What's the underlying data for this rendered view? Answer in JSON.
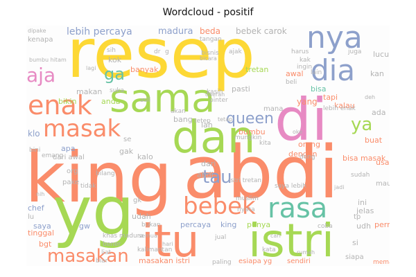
{
  "title": "Wordcloud - positif",
  "palette": {
    "orange": "#fa8c6a",
    "green": "#a6d854",
    "yellow": "#fdd835",
    "blue": "#8da0cb",
    "pink": "#e78ac3",
    "teal": "#66c2a5",
    "tan": "#e5c494",
    "grey": "#b3b3b3"
  },
  "words": [
    {
      "text": "resep"
    },
    {
      "text": "king"
    },
    {
      "text": "abdi"
    },
    {
      "text": "yg"
    },
    {
      "text": "itu"
    },
    {
      "text": "istri"
    },
    {
      "text": "di"
    },
    {
      "text": "dan"
    },
    {
      "text": "sama"
    },
    {
      "text": "nya"
    },
    {
      "text": "dia"
    },
    {
      "text": "enak"
    },
    {
      "text": "masak"
    },
    {
      "text": "rasa"
    },
    {
      "text": "bebek"
    },
    {
      "text": "masakan"
    },
    {
      "text": "aja"
    },
    {
      "text": "tau"
    },
    {
      "text": "queen"
    },
    {
      "text": "ya"
    },
    {
      "text": "ga"
    },
    {
      "text": "lebih percaya"
    },
    {
      "text": "madura"
    },
    {
      "text": "beda"
    },
    {
      "text": "bebek carok"
    },
    {
      "text": "banyak"
    },
    {
      "text": "tretan"
    },
    {
      "text": "pasti"
    },
    {
      "text": "awal"
    },
    {
      "text": "bisa"
    },
    {
      "text": "kalau"
    },
    {
      "text": "tapi"
    },
    {
      "text": "yang"
    },
    {
      "text": "bumbu"
    },
    {
      "text": "orang"
    },
    {
      "text": "dengan"
    },
    {
      "text": "buat"
    },
    {
      "text": "klo"
    },
    {
      "text": "apa"
    },
    {
      "text": "bikin"
    },
    {
      "text": "anda"
    },
    {
      "text": "gak"
    },
    {
      "text": "kalo"
    },
    {
      "text": "lah"
    },
    {
      "text": "bang"
    },
    {
      "text": "dari"
    },
    {
      "text": "abdi"
    },
    {
      "text": "chef"
    },
    {
      "text": "saya"
    },
    {
      "text": "gw"
    },
    {
      "text": "udah"
    },
    {
      "text": "percaya"
    },
    {
      "text": "king"
    },
    {
      "text": "punya"
    },
    {
      "text": "jelas"
    },
    {
      "text": "ini"
    },
    {
      "text": "udh"
    },
    {
      "text": "bgt"
    },
    {
      "text": "tinggal"
    },
    {
      "text": "si"
    },
    {
      "text": "masakan istri"
    },
    {
      "text": "pernah"
    },
    {
      "text": "bisa masak"
    },
    {
      "text": "usaha"
    },
    {
      "text": "lucu"
    },
    {
      "text": "kan"
    },
    {
      "text": "ada"
    },
    {
      "text": "makan"
    },
    {
      "text": "kok"
    },
    {
      "text": "sih"
    },
    {
      "text": "dr"
    },
    {
      "text": "g"
    },
    {
      "text": "kenapa"
    },
    {
      "text": "lebih enak"
    },
    {
      "text": "org"
    },
    {
      "text": "pake"
    },
    {
      "text": "dari awal"
    },
    {
      "text": "mana"
    },
    {
      "text": "se"
    },
    {
      "text": "gk"
    },
    {
      "text": "bukan"
    },
    {
      "text": "mau"
    },
    {
      "text": "lu"
    },
    {
      "text": "tp"
    },
    {
      "text": "emang"
    },
    {
      "text": "coba"
    },
    {
      "text": "akan"
    },
    {
      "text": "kasih"
    },
    {
      "text": "pinter"
    },
    {
      "text": "ajak"
    },
    {
      "text": "bisnis"
    },
    {
      "text": "beli"
    },
    {
      "text": "jual"
    },
    {
      "text": "muslim"
    },
    {
      "text": "siapa"
    },
    {
      "text": "memang"
    },
    {
      "text": "esiapa yg"
    },
    {
      "text": "sendiri"
    },
    {
      "text": "paling"
    },
    {
      "text": "kalimantan"
    },
    {
      "text": "liat"
    },
    {
      "text": "bener"
    },
    {
      "text": "khas madura"
    },
    {
      "text": "istri tretan"
    },
    {
      "text": "saya lebih"
    },
    {
      "text": "kita"
    },
    {
      "text": "dipake"
    },
    {
      "text": "juga"
    },
    {
      "text": "harus"
    },
    {
      "text": "lain"
    },
    {
      "text": "kak"
    },
    {
      "text": "dong"
    },
    {
      "text": "ingin"
    },
    {
      "text": "tidak"
    },
    {
      "text": "bilang"
    },
    {
      "text": "nyata"
    },
    {
      "text": "kata"
    },
    {
      "text": "bini"
    },
    {
      "text": "sudah"
    },
    {
      "text": "mungkin"
    },
    {
      "text": "asli"
    },
    {
      "text": "tetep"
    },
    {
      "text": "suka"
    },
    {
      "text": "biar"
    },
    {
      "text": "bumbu hitam"
    },
    {
      "text": "lagi"
    },
    {
      "text": "tangan"
    },
    {
      "text": "hari"
    },
    {
      "text": "bicara"
    },
    {
      "text": "rumah"
    },
    {
      "text": "daerah"
    },
    {
      "text": "semua"
    },
    {
      "text": "tetap"
    },
    {
      "text": "cari"
    },
    {
      "text": "deh"
    },
    {
      "text": "jadi"
    },
    {
      "text": "nih"
    },
    {
      "text": "oke"
    }
  ]
}
